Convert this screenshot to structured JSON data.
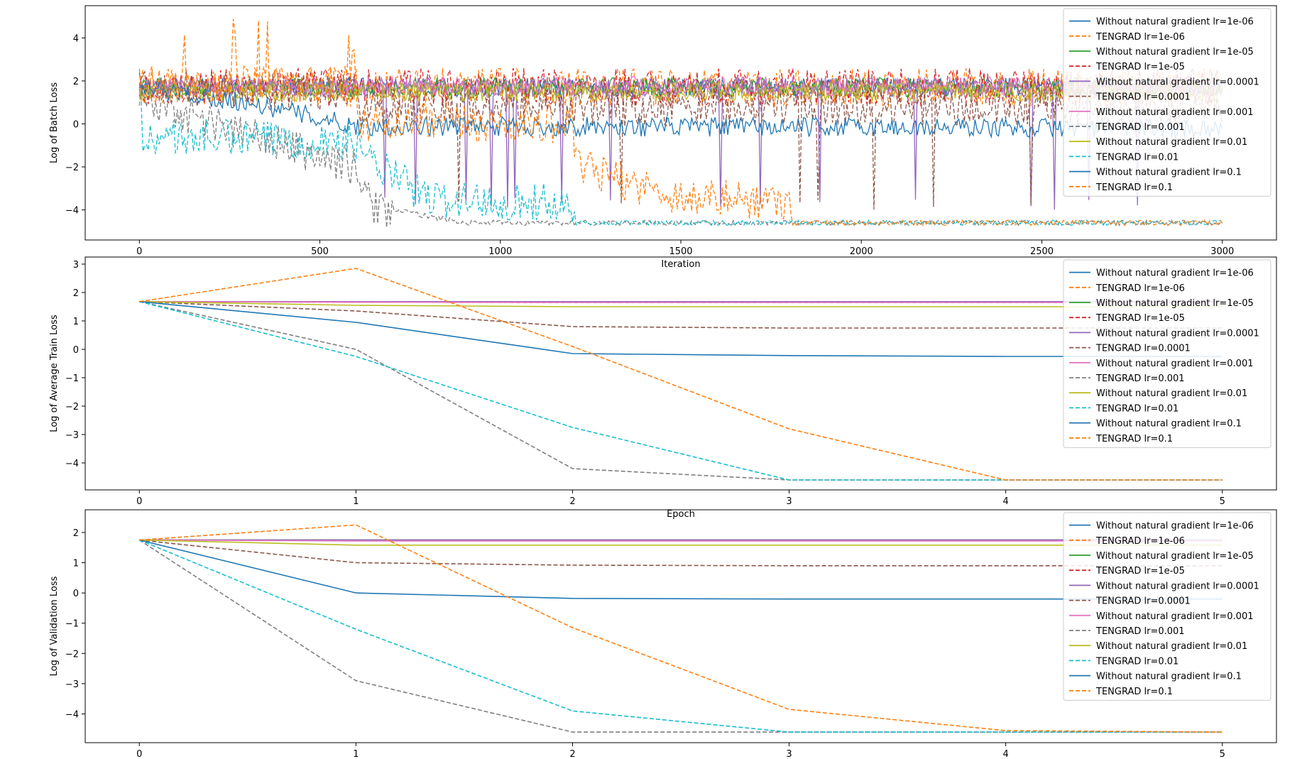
{
  "chart_data": [
    {
      "type": "line",
      "title": "",
      "xlabel": "Iteration",
      "ylabel": "Log of Batch Loss",
      "xlim": [
        -150,
        3150
      ],
      "ylim": [
        -5.4,
        5.5
      ],
      "xticks": [
        0,
        500,
        1000,
        1500,
        2000,
        2500,
        3000
      ],
      "yticks": [
        -4,
        -2,
        0,
        2,
        4
      ],
      "legend_position": "upper right",
      "grid": false,
      "series": [
        {
          "name": "Without natural gradient lr=1e-06",
          "color": "#1f77b4",
          "dash": "solid",
          "x": [
            0,
            3000
          ],
          "y": [
            1.7,
            1.7
          ]
        },
        {
          "name": "TENGRAD lr=1e-06",
          "color": "#ff7f0e",
          "dash": "dashed",
          "x": [
            0,
            3000
          ],
          "y": [
            1.7,
            1.7
          ]
        },
        {
          "name": "Without natural gradient lr=1e-05",
          "color": "#2ca02c",
          "dash": "solid",
          "x": [
            0,
            3000
          ],
          "y": [
            1.7,
            1.7
          ]
        },
        {
          "name": "TENGRAD lr=1e-05",
          "color": "#d62728",
          "dash": "dashed",
          "x": [
            0,
            3000
          ],
          "y": [
            1.7,
            1.7
          ]
        },
        {
          "name": "Without natural gradient lr=0.0001",
          "color": "#9467bd",
          "dash": "solid",
          "x": [
            0,
            3000
          ],
          "y": [
            1.7,
            1.7
          ]
        },
        {
          "name": "TENGRAD lr=0.0001",
          "color": "#8c564b",
          "dash": "dashed",
          "x": [
            0,
            600,
            610,
            3000
          ],
          "y": [
            1.7,
            1.4,
            0.8,
            0.7
          ]
        },
        {
          "name": "Without natural gradient lr=0.001",
          "color": "#e377c2",
          "dash": "solid",
          "x": [
            0,
            3000
          ],
          "y": [
            1.75,
            1.75
          ]
        },
        {
          "name": "TENGRAD lr=0.001",
          "color": "#7f7f7f",
          "dash": "dashed",
          "x": [
            0,
            300,
            600,
            640,
            900,
            1200,
            3000
          ],
          "y": [
            1.2,
            -0.5,
            -2.0,
            -3.8,
            -4.6,
            -4.6,
            -4.6
          ]
        },
        {
          "name": "Without natural gradient lr=0.01",
          "color": "#bcbd22",
          "dash": "solid",
          "x": [
            0,
            3000
          ],
          "y": [
            1.5,
            1.5
          ]
        },
        {
          "name": "TENGRAD lr=0.01",
          "color": "#17becf",
          "dash": "dashed",
          "x": [
            0,
            10,
            600,
            620,
            800,
            1200,
            1210,
            3000
          ],
          "y": [
            1.0,
            -0.6,
            -0.8,
            -1.5,
            -3.5,
            -3.7,
            -4.6,
            -4.6
          ]
        },
        {
          "name": "Without natural gradient lr=0.1",
          "color": "#1f77b4",
          "dash": "solid",
          "x": [
            0,
            300,
            600,
            3000
          ],
          "y": [
            1.7,
            1.0,
            -0.1,
            -0.2
          ]
        },
        {
          "name": "TENGRAD lr=0.1",
          "color": "#ff7f0e",
          "dash": "dashed",
          "x": [
            0,
            600,
            610,
            1200,
            1210,
            1500,
            1800,
            1810,
            3000
          ],
          "y": [
            1.8,
            1.8,
            0.0,
            0.0,
            -2.0,
            -3.4,
            -3.6,
            -4.6,
            -4.6
          ]
        }
      ]
    },
    {
      "type": "line",
      "title": "",
      "xlabel": "Epoch",
      "ylabel": "Log of Average Train Loss",
      "xlim": [
        -0.25,
        5.25
      ],
      "ylim": [
        -4.95,
        3.25
      ],
      "xticks": [
        0,
        1,
        2,
        3,
        4,
        5
      ],
      "yticks": [
        -4,
        -3,
        -2,
        -1,
        0,
        1,
        2,
        3
      ],
      "legend_position": "upper right",
      "grid": false,
      "series": [
        {
          "name": "Without natural gradient lr=1e-06",
          "color": "#1f77b4",
          "dash": "solid",
          "x": [
            0,
            1,
            2,
            3,
            4,
            5
          ],
          "y": [
            1.68,
            1.68,
            1.68,
            1.68,
            1.68,
            1.68
          ]
        },
        {
          "name": "TENGRAD lr=1e-06",
          "color": "#ff7f0e",
          "dash": "dashed",
          "x": [
            0,
            1,
            2,
            3,
            4,
            5
          ],
          "y": [
            1.68,
            1.68,
            1.68,
            1.68,
            1.68,
            1.68
          ]
        },
        {
          "name": "Without natural gradient lr=1e-05",
          "color": "#2ca02c",
          "dash": "solid",
          "x": [
            0,
            1,
            2,
            3,
            4,
            5
          ],
          "y": [
            1.68,
            1.68,
            1.68,
            1.68,
            1.68,
            1.68
          ]
        },
        {
          "name": "TENGRAD lr=1e-05",
          "color": "#d62728",
          "dash": "dashed",
          "x": [
            0,
            1,
            2,
            3,
            4,
            5
          ],
          "y": [
            1.68,
            1.66,
            1.65,
            1.65,
            1.65,
            1.65
          ]
        },
        {
          "name": "Without natural gradient lr=0.0001",
          "color": "#9467bd",
          "dash": "solid",
          "x": [
            0,
            1,
            2,
            3,
            4,
            5
          ],
          "y": [
            1.68,
            1.68,
            1.68,
            1.68,
            1.68,
            1.68
          ]
        },
        {
          "name": "TENGRAD lr=0.0001",
          "color": "#8c564b",
          "dash": "dashed",
          "x": [
            0,
            1,
            2,
            3,
            4,
            5
          ],
          "y": [
            1.68,
            1.35,
            0.8,
            0.75,
            0.75,
            0.75
          ]
        },
        {
          "name": "Without natural gradient lr=0.001",
          "color": "#e377c2",
          "dash": "solid",
          "x": [
            0,
            1,
            2,
            3,
            4,
            5
          ],
          "y": [
            1.68,
            1.66,
            1.65,
            1.65,
            1.65,
            1.65
          ]
        },
        {
          "name": "TENGRAD lr=0.001",
          "color": "#7f7f7f",
          "dash": "dashed",
          "x": [
            0,
            1,
            2,
            3,
            4,
            5
          ],
          "y": [
            1.68,
            0.0,
            -4.2,
            -4.6,
            -4.6,
            -4.6
          ]
        },
        {
          "name": "Without natural gradient lr=0.01",
          "color": "#bcbd22",
          "dash": "solid",
          "x": [
            0,
            1,
            2,
            3,
            4,
            5
          ],
          "y": [
            1.68,
            1.55,
            1.5,
            1.5,
            1.5,
            1.5
          ]
        },
        {
          "name": "TENGRAD lr=0.01",
          "color": "#17becf",
          "dash": "dashed",
          "x": [
            0,
            1,
            2,
            3,
            4,
            5
          ],
          "y": [
            1.68,
            -0.25,
            -2.75,
            -4.6,
            -4.6,
            -4.6
          ]
        },
        {
          "name": "Without natural gradient lr=0.1",
          "color": "#1f77b4",
          "dash": "solid",
          "x": [
            0,
            1,
            2,
            3,
            4,
            5
          ],
          "y": [
            1.68,
            0.95,
            -0.15,
            -0.22,
            -0.25,
            -0.25
          ]
        },
        {
          "name": "TENGRAD lr=0.1",
          "color": "#ff7f0e",
          "dash": "dashed",
          "x": [
            0,
            1,
            2,
            3,
            4,
            5
          ],
          "y": [
            1.68,
            2.85,
            0.1,
            -2.8,
            -4.6,
            -4.6
          ]
        }
      ]
    },
    {
      "type": "line",
      "title": "",
      "xlabel": "Epoch",
      "ylabel": "Log of Validation Loss",
      "xlim": [
        -0.25,
        5.25
      ],
      "ylim": [
        -4.95,
        2.75
      ],
      "xticks": [
        0,
        1,
        2,
        3,
        4,
        5
      ],
      "yticks": [
        -4,
        -3,
        -2,
        -1,
        0,
        1,
        2
      ],
      "legend_position": "upper right",
      "grid": false,
      "series": [
        {
          "name": "Without natural gradient lr=1e-06",
          "color": "#1f77b4",
          "dash": "solid",
          "x": [
            0,
            1,
            2,
            3,
            4,
            5
          ],
          "y": [
            1.75,
            1.75,
            1.75,
            1.75,
            1.75,
            1.75
          ]
        },
        {
          "name": "TENGRAD lr=1e-06",
          "color": "#ff7f0e",
          "dash": "dashed",
          "x": [
            0,
            1,
            2,
            3,
            4,
            5
          ],
          "y": [
            1.75,
            1.75,
            1.75,
            1.75,
            1.75,
            1.75
          ]
        },
        {
          "name": "Without natural gradient lr=1e-05",
          "color": "#2ca02c",
          "dash": "solid",
          "x": [
            0,
            1,
            2,
            3,
            4,
            5
          ],
          "y": [
            1.75,
            1.75,
            1.75,
            1.75,
            1.75,
            1.75
          ]
        },
        {
          "name": "TENGRAD lr=1e-05",
          "color": "#d62728",
          "dash": "dashed",
          "x": [
            0,
            1,
            2,
            3,
            4,
            5
          ],
          "y": [
            1.75,
            1.74,
            1.74,
            1.74,
            1.74,
            1.74
          ]
        },
        {
          "name": "Without natural gradient lr=0.0001",
          "color": "#9467bd",
          "dash": "solid",
          "x": [
            0,
            1,
            2,
            3,
            4,
            5
          ],
          "y": [
            1.75,
            1.75,
            1.75,
            1.75,
            1.75,
            1.75
          ]
        },
        {
          "name": "TENGRAD lr=0.0001",
          "color": "#8c564b",
          "dash": "dashed",
          "x": [
            0,
            1,
            2,
            3,
            4,
            5
          ],
          "y": [
            1.75,
            1.0,
            0.92,
            0.9,
            0.9,
            0.9
          ]
        },
        {
          "name": "Without natural gradient lr=0.001",
          "color": "#e377c2",
          "dash": "solid",
          "x": [
            0,
            1,
            2,
            3,
            4,
            5
          ],
          "y": [
            1.75,
            1.72,
            1.72,
            1.72,
            1.72,
            1.72
          ]
        },
        {
          "name": "TENGRAD lr=0.001",
          "color": "#7f7f7f",
          "dash": "dashed",
          "x": [
            0,
            1,
            2,
            3,
            4,
            5
          ],
          "y": [
            1.75,
            -2.9,
            -4.6,
            -4.6,
            -4.6,
            -4.6
          ]
        },
        {
          "name": "Without natural gradient lr=0.01",
          "color": "#bcbd22",
          "dash": "solid",
          "x": [
            0,
            1,
            2,
            3,
            4,
            5
          ],
          "y": [
            1.75,
            1.58,
            1.58,
            1.58,
            1.58,
            1.58
          ]
        },
        {
          "name": "TENGRAD lr=0.01",
          "color": "#17becf",
          "dash": "dashed",
          "x": [
            0,
            1,
            2,
            3,
            4,
            5
          ],
          "y": [
            1.75,
            -1.2,
            -3.9,
            -4.6,
            -4.6,
            -4.6
          ]
        },
        {
          "name": "Without natural gradient lr=0.1",
          "color": "#1f77b4",
          "dash": "solid",
          "x": [
            0,
            1,
            2,
            3,
            4,
            5
          ],
          "y": [
            1.75,
            0.0,
            -0.18,
            -0.2,
            -0.2,
            -0.2
          ]
        },
        {
          "name": "TENGRAD lr=0.1",
          "color": "#ff7f0e",
          "dash": "dashed",
          "x": [
            0,
            1,
            2,
            3,
            4,
            5
          ],
          "y": [
            1.75,
            2.25,
            -1.15,
            -3.85,
            -4.55,
            -4.6
          ]
        }
      ]
    }
  ]
}
